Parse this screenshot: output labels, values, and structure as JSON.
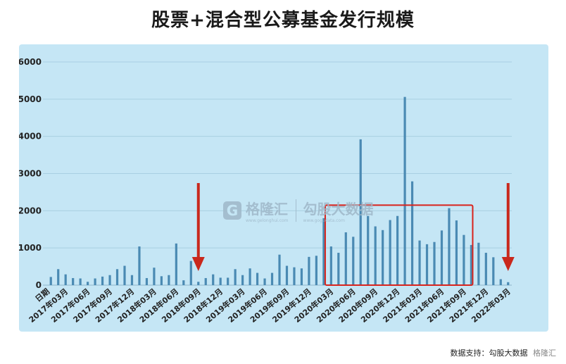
{
  "page": {
    "title": "股票+混合型公募基金发行规模",
    "source_label": "数据支持：",
    "source_name": "勾股大数据",
    "logo_text": "格隆汇"
  },
  "watermark": {
    "brand": "格隆汇",
    "brand_url": "www.gelonghui.com",
    "partner": "勾股大数据",
    "partner_url": "www.gogudata.com"
  },
  "chart_data": {
    "type": "bar",
    "title": "股票+混合型公募基金发行规模",
    "xlabel": "",
    "ylabel": "",
    "ylim": [
      0,
      6000
    ],
    "yticks": [
      0,
      1000,
      2000,
      3000,
      4000,
      5000,
      6000
    ],
    "grid": true,
    "bar_color": "#4a8ab3",
    "axis_first_label": "日期",
    "xtick_labels": [
      "2017年03月",
      "2017年06月",
      "2017年09月",
      "2017年12月",
      "2018年03月",
      "2018年06月",
      "2018年09月",
      "2018年12月",
      "2019年03月",
      "2019年06月",
      "2019年09月",
      "2019年12月",
      "2020年03月",
      "2020年06月",
      "2020年09月",
      "2020年12月",
      "2021年03月",
      "2021年06月",
      "2021年09月",
      "2021年12月",
      "2022年03月"
    ],
    "categories": [
      "2017年01月",
      "2017年02月",
      "2017年03月",
      "2017年04月",
      "2017年05月",
      "2017年06月",
      "2017年07月",
      "2017年08月",
      "2017年09月",
      "2017年10月",
      "2017年11月",
      "2017年12月",
      "2018年01月",
      "2018年02月",
      "2018年03月",
      "2018年04月",
      "2018年05月",
      "2018年06月",
      "2018年07月",
      "2018年08月",
      "2018年09月",
      "2018年10月",
      "2018年11月",
      "2018年12月",
      "2019年01月",
      "2019年02月",
      "2019年03月",
      "2019年04月",
      "2019年05月",
      "2019年06月",
      "2019年07月",
      "2019年08月",
      "2019年09月",
      "2019年10月",
      "2019年11月",
      "2019年12月",
      "2020年01月",
      "2020年02月",
      "2020年03月",
      "2020年04月",
      "2020年05月",
      "2020年06月",
      "2020年07月",
      "2020年08月",
      "2020年09月",
      "2020年10月",
      "2020年11月",
      "2020年12月",
      "2021年01月",
      "2021年02月",
      "2021年03月",
      "2021年04月",
      "2021年05月",
      "2021年06月",
      "2021年07月",
      "2021年08月",
      "2021年09月",
      "2021年10月",
      "2021年11月",
      "2021年12月",
      "2022年01月",
      "2022年02月",
      "2022年03月"
    ],
    "values": [
      220,
      430,
      290,
      190,
      180,
      90,
      180,
      230,
      270,
      430,
      520,
      270,
      1040,
      190,
      470,
      240,
      270,
      1120,
      130,
      650,
      90,
      190,
      290,
      200,
      200,
      430,
      270,
      450,
      330,
      180,
      330,
      820,
      520,
      480,
      450,
      760,
      790,
      1800,
      1040,
      870,
      1420,
      1300,
      3920,
      1860,
      1580,
      1480,
      1750,
      1860,
      5060,
      2790,
      1200,
      1100,
      1160,
      1470,
      2070,
      1740,
      1350,
      1080,
      1140,
      870,
      750,
      160,
      80
    ],
    "annotations": {
      "arrows": [
        {
          "category": "2018年09月"
        },
        {
          "category": "2022年03月"
        }
      ],
      "highlight_box": {
        "from": "2020年03月",
        "to": "2021年09月",
        "y_top": 2150
      }
    }
  }
}
